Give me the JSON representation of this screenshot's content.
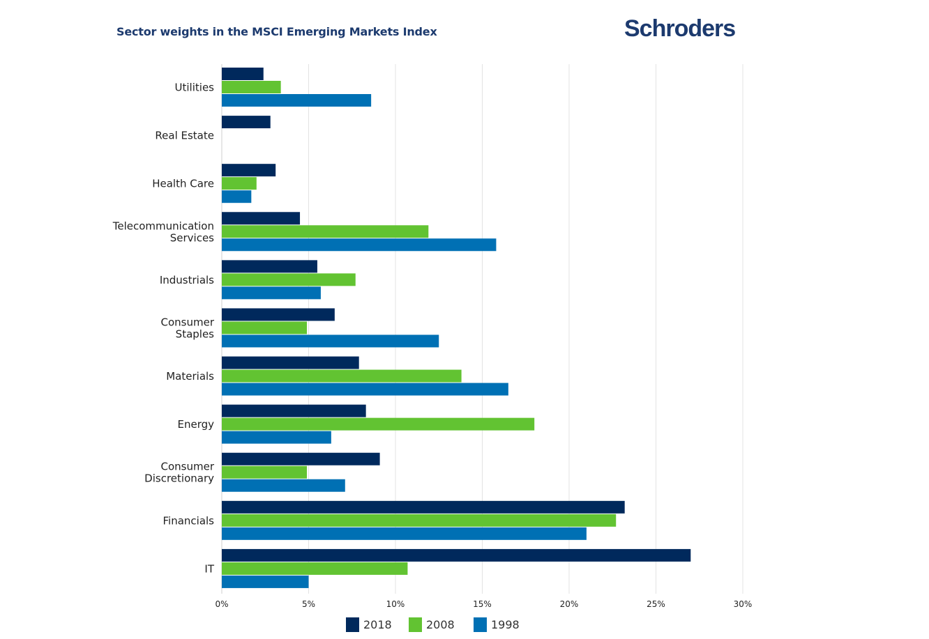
{
  "header": {
    "title": "Sector weights in the MSCI Emerging Markets Index",
    "logo_text": "Schroders"
  },
  "chart_data": {
    "type": "bar",
    "orientation": "horizontal",
    "title": "Sector weights in the MSCI Emerging Markets Index",
    "xlabel": "",
    "ylabel": "",
    "xlim": [
      0,
      30
    ],
    "x_ticks": [
      "0%",
      "5%",
      "10%",
      "15%",
      "20%",
      "25%",
      "30%"
    ],
    "x_tick_values": [
      0,
      5,
      10,
      15,
      20,
      25,
      30
    ],
    "grid": "vertical",
    "legend_position": "bottom-center",
    "categories": [
      [
        "Utilities"
      ],
      [
        "Real Estate"
      ],
      [
        "Health Care"
      ],
      [
        "Telecommunication",
        "Services"
      ],
      [
        "Industrials"
      ],
      [
        "Consumer",
        "Staples"
      ],
      [
        "Materials"
      ],
      [
        "Energy"
      ],
      [
        "Consumer",
        "Discretionary"
      ],
      [
        "Financials"
      ],
      [
        "IT"
      ]
    ],
    "series": [
      {
        "name": "2018",
        "color": "#00295c",
        "values": [
          2.4,
          2.8,
          3.1,
          4.5,
          5.5,
          6.5,
          7.9,
          8.3,
          9.1,
          23.2,
          27.0
        ]
      },
      {
        "name": "2008",
        "color": "#62c332",
        "values": [
          3.4,
          null,
          2.0,
          11.9,
          7.7,
          4.9,
          13.8,
          18.0,
          4.9,
          22.7,
          10.7
        ]
      },
      {
        "name": "1998",
        "color": "#0070b4",
        "values": [
          8.6,
          null,
          1.7,
          15.8,
          5.7,
          12.5,
          16.5,
          6.3,
          7.1,
          21.0,
          5.0
        ]
      }
    ]
  }
}
